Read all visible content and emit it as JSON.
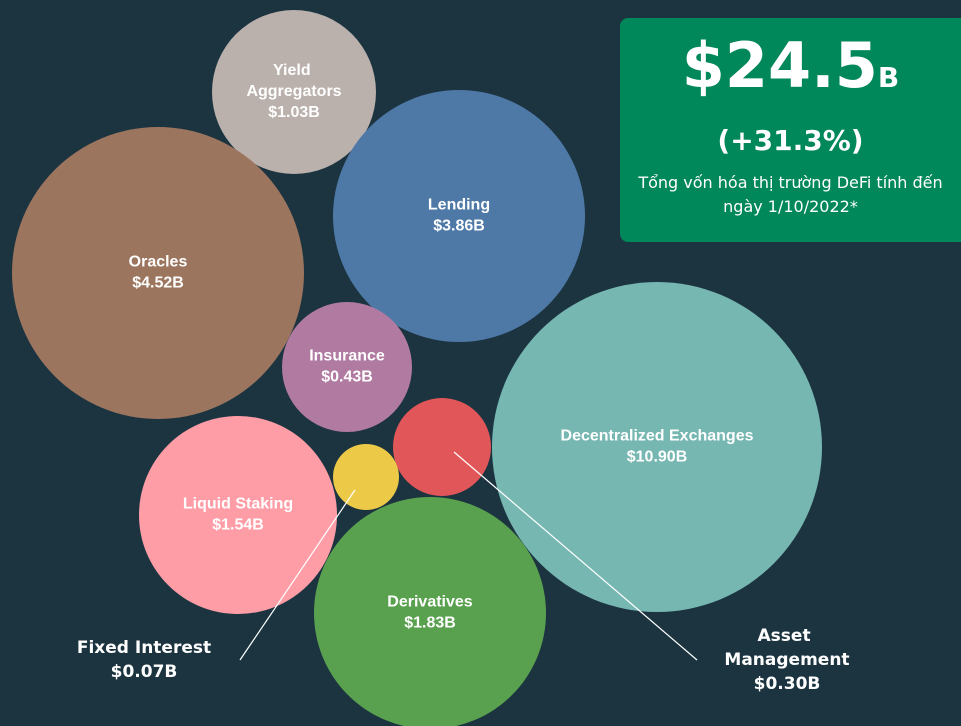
{
  "chart_data": {
    "type": "bubble",
    "categories": [
      "Yield Aggregators",
      "Lending",
      "Oracles",
      "Insurance",
      "Decentralized Exchanges",
      "Asset Management",
      "Fixed Interest",
      "Liquid Staking",
      "Derivatives"
    ],
    "values": [
      1.03,
      3.86,
      4.52,
      0.43,
      10.9,
      0.3,
      0.07,
      1.54,
      1.83
    ],
    "value_labels": [
      "$1.03B",
      "$3.86B",
      "$4.52B",
      "$0.43B",
      "$10.90B",
      "$0.30B",
      "$0.07B",
      "$1.54B",
      "$1.83B"
    ],
    "colors": [
      "#bab0ac",
      "#4e79a7",
      "#9c755f",
      "#b07aa1",
      "#76b7b2",
      "#e15759",
      "#edc948",
      "#ff9da7",
      "#59a14f"
    ],
    "annotations": {
      "total": "$24.5",
      "total_unit": "B",
      "change": "(+31.3%)",
      "note": "Tổng vốn hóa thị trường DeFi tính đến ngày 1/10/2022*"
    }
  }
}
